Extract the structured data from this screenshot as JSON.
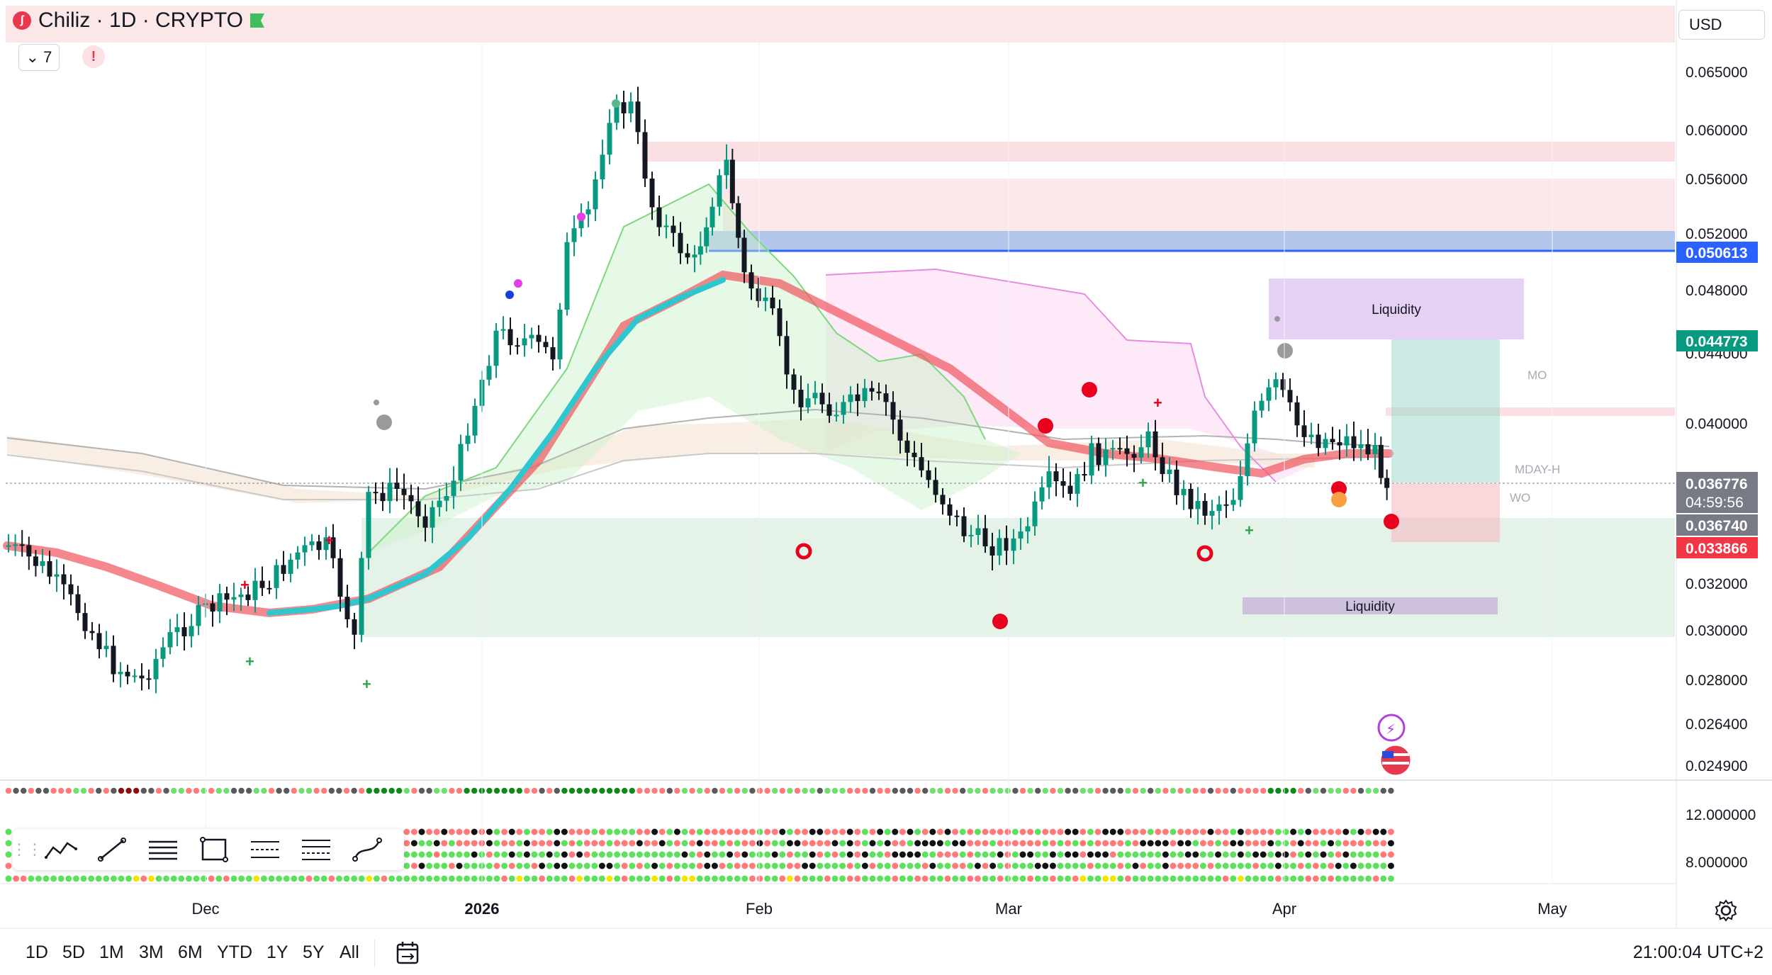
{
  "symbol": {
    "title": "Chiliz · 1D · CRYPTO",
    "logo_glyph": "ʃ",
    "collapse_count": "7",
    "warning_glyph": "!"
  },
  "currency": "USD",
  "price_axis": {
    "labels": [
      "0.065000",
      "0.060000",
      "0.056000",
      "0.052000",
      "0.048000",
      "0.044000",
      "0.040000",
      "0.032000",
      "0.030000",
      "0.028000",
      "0.026400",
      "0.024900"
    ],
    "markers": [
      {
        "value": "0.050613",
        "bg": "#2962ff",
        "color": "#ffffff"
      },
      {
        "value": "0.044773",
        "bg": "#089981",
        "color": "#ffffff"
      },
      {
        "value": "0.036776",
        "bg": "#787b86",
        "color": "#ffffff"
      },
      {
        "value": "04:59:56",
        "bg": "#787b86",
        "color": "#ffffff"
      },
      {
        "value": "0.036740",
        "bg": "#787b86",
        "color": "#ffffff"
      },
      {
        "value": "0.033866",
        "bg": "#f23645",
        "color": "#ffffff"
      }
    ]
  },
  "indicator_axis": {
    "labels": [
      "12.000000",
      "8.000000"
    ]
  },
  "time_axis": {
    "labels": [
      "Dec",
      "2026",
      "Feb",
      "Mar",
      "Apr",
      "May"
    ]
  },
  "zones": {
    "liquidity_upper": "Liquidity",
    "liquidity_lower": "Liquidity"
  },
  "level_labels": {
    "mo": "MO",
    "mday_h": "MDAY-H",
    "wo": "WO"
  },
  "drawing_toolbar": {
    "tools": [
      "trend-pattern-icon",
      "line-icon",
      "horizontal-lines-icon",
      "rectangle-icon",
      "fib-retracement-icon",
      "fib-levels-icon",
      "curve-icon"
    ]
  },
  "range_selector": {
    "buttons": [
      "1D",
      "5D",
      "1M",
      "3M",
      "6M",
      "YTD",
      "1Y",
      "5Y",
      "All"
    ]
  },
  "clock": "21:00:04 UTC+2",
  "colors": {
    "up": "#089981",
    "down": "#131722",
    "ema_fast": "#2ec7cf",
    "ema_slow": "#f0565e",
    "accent": "#2962ff"
  }
}
